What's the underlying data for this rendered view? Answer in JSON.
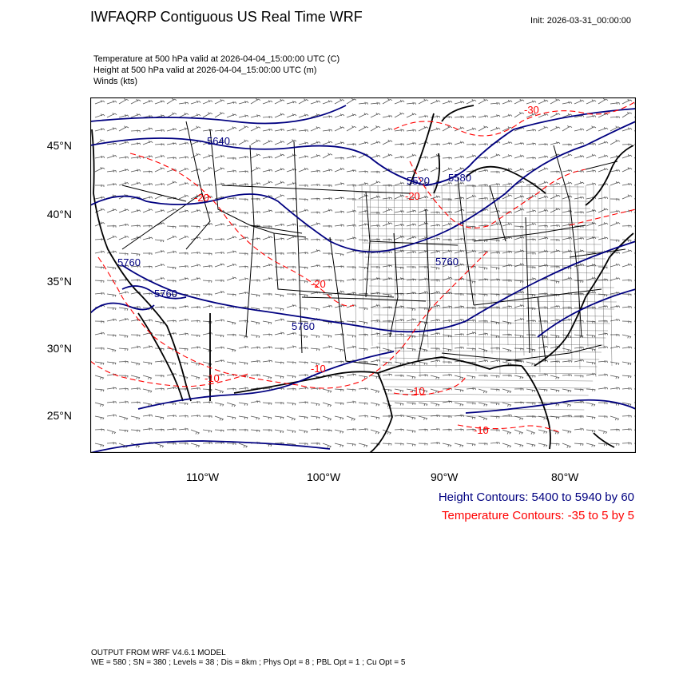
{
  "header": {
    "title": "IWFAQRP Contiguous US Real Time WRF",
    "init": "Init: 2026-03-31_00:00:00"
  },
  "subtitles": [
    "Temperature at 500 hPa valid at 2026-04-04_15:00:00 UTC   (C)",
    "Height at 500 hPa valid at 2026-04-04_15:00:00 UTC   (m)",
    "Winds   (kts)"
  ],
  "axes": {
    "lat_labels": [
      "45°N",
      "40°N",
      "35°N",
      "30°N",
      "25°N"
    ],
    "lon_labels": [
      "110°W",
      "100°W",
      "90°W",
      "80°W"
    ]
  },
  "legend": {
    "height": "Height Contours: 5400 to 5940 by 60",
    "temperature": "Temperature Contours: -35 to 5 by 5"
  },
  "footer": {
    "line1": "OUTPUT FROM WRF V4.6.1 MODEL",
    "line2": "WE = 580 ; SN = 380 ; Levels = 38 ; Dis = 8km ; Phys Opt = 8 ; PBL Opt = 1 ; Cu Opt = 5"
  },
  "contour_labels": {
    "height": [
      "5640",
      "5520",
      "5760",
      "5760",
      "5760",
      "5760",
      "5580"
    ],
    "temperature": [
      "-30",
      "-20",
      "-20",
      "-20",
      "-10",
      "-10",
      "-10",
      "-10"
    ]
  },
  "colors": {
    "height": "#000080",
    "temperature": "#ff0000",
    "boundaries": "#000000",
    "wind_barbs": "#555555"
  }
}
